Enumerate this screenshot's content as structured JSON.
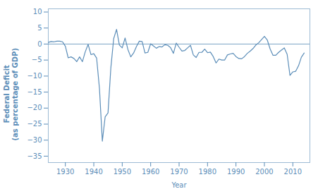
{
  "chart_data": {
    "type": "line",
    "xlabel": "Year",
    "ylabel": "Federal Deficit\n(as percentage of GDP)",
    "color": "#5b8db8",
    "x": [
      1924,
      1925,
      1926,
      1927,
      1928,
      1929,
      1930,
      1931,
      1932,
      1933,
      1934,
      1935,
      1936,
      1937,
      1938,
      1939,
      1940,
      1941,
      1942,
      1943,
      1944,
      1945,
      1946,
      1947,
      1948,
      1949,
      1950,
      1951,
      1952,
      1953,
      1954,
      1955,
      1956,
      1957,
      1958,
      1959,
      1960,
      1961,
      1962,
      1963,
      1964,
      1965,
      1966,
      1967,
      1968,
      1969,
      1970,
      1971,
      1972,
      1973,
      1974,
      1975,
      1976,
      1977,
      1978,
      1979,
      1980,
      1981,
      1982,
      1983,
      1984,
      1985,
      1986,
      1987,
      1988,
      1989,
      1990,
      1991,
      1992,
      1993,
      1994,
      1995,
      1996,
      1997,
      1998,
      1999,
      2000,
      2001,
      2002,
      2003,
      2004,
      2005,
      2006,
      2007,
      2008,
      2009,
      2010,
      2011,
      2012,
      2013,
      2014
    ],
    "values": [
      0.5,
      0.8,
      0.7,
      0.9,
      0.9,
      0.7,
      -0.7,
      -4.3,
      -4.0,
      -4.5,
      -5.5,
      -4.0,
      -5.5,
      -2.4,
      -0.1,
      -3.3,
      -3.0,
      -4.4,
      -14.0,
      -30.3,
      -22.7,
      -21.5,
      -7.4,
      1.7,
      4.6,
      -0.3,
      -1.2,
      1.9,
      -1.7,
      -4.0,
      -2.8,
      -0.8,
      0.9,
      0.8,
      -2.8,
      -2.6,
      0.1,
      -0.6,
      -1.3,
      -0.8,
      -0.9,
      -0.2,
      -0.4,
      -1.1,
      -2.9,
      0.3,
      -1.0,
      -2.2,
      -2.0,
      -1.2,
      -0.4,
      -3.4,
      -4.2,
      -2.6,
      -2.6,
      -1.6,
      -2.7,
      -2.5,
      -3.9,
      -5.9,
      -4.7,
      -5.0,
      -5.0,
      -3.4,
      -3.1,
      -2.9,
      -3.9,
      -4.5,
      -4.6,
      -3.9,
      -2.9,
      -2.2,
      -1.4,
      -0.3,
      0.4,
      1.4,
      2.4,
      1.3,
      -1.5,
      -3.5,
      -3.5,
      -2.6,
      -1.9,
      -1.2,
      -3.2,
      -9.8,
      -8.7,
      -8.5,
      -6.8,
      -4.1,
      -2.8
    ],
    "xlim": [
      1924,
      2016
    ],
    "ylim": [
      -37,
      11
    ],
    "xticks": [
      1930,
      1940,
      1950,
      1960,
      1970,
      1980,
      1990,
      2000,
      2010
    ],
    "yticks": [
      10,
      5,
      0,
      {
        "value": -5,
        "label": "−5"
      },
      {
        "value": -10,
        "label": "−10"
      },
      {
        "value": -15,
        "label": "−15"
      },
      {
        "value": -20,
        "label": "−20"
      },
      {
        "value": -25,
        "label": "−25"
      },
      {
        "value": -30,
        "label": "−30"
      },
      {
        "value": -35,
        "label": "−35"
      }
    ]
  }
}
